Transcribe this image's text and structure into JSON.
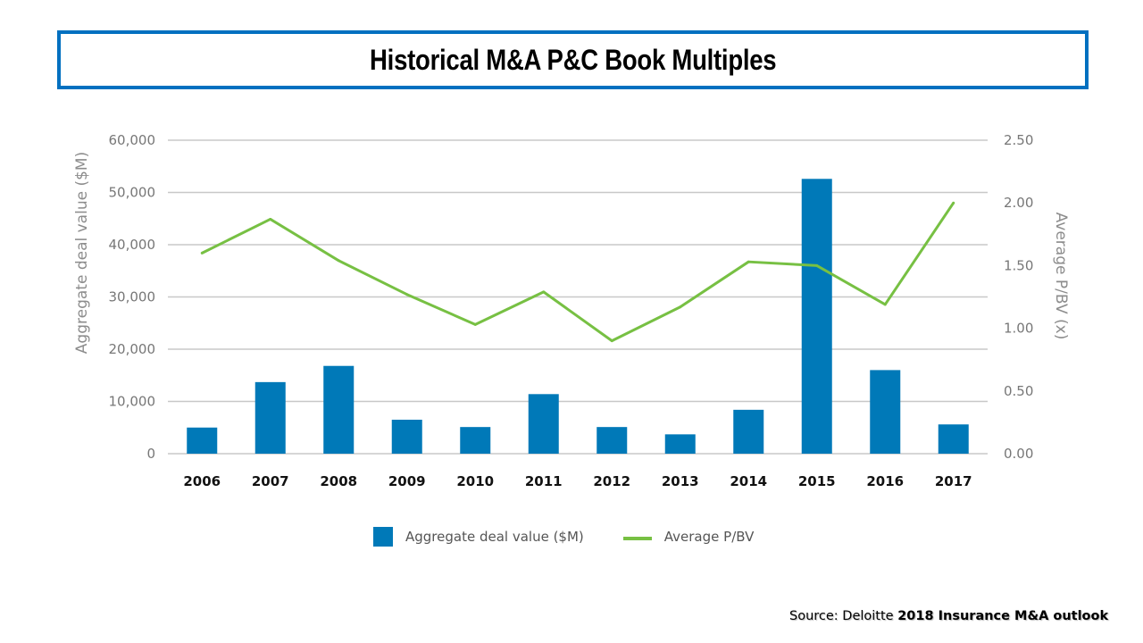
{
  "title": "Historical M&A P&C Book Multiples",
  "source": {
    "prefix": "Source: Deloitte",
    "emphasis": "2018 Insurance M&A outlook"
  },
  "colors": {
    "bar": "#0079b8",
    "line": "#77c043",
    "title_border": "#0070c0",
    "grid": "#c8c8c8"
  },
  "chart_data": {
    "type": "bar",
    "title": "Historical M&A P&C Book Multiples",
    "xlabel": "",
    "ylabel": "Aggregate deal value ($M)",
    "y2label": "Average P/BV (x)",
    "categories": [
      "2006",
      "2007",
      "2008",
      "2009",
      "2010",
      "2011",
      "2012",
      "2013",
      "2014",
      "2015",
      "2016",
      "2017"
    ],
    "series": [
      {
        "name": "Aggregate deal value ($M)",
        "type": "bar",
        "axis": "left",
        "values": [
          5000,
          13700,
          16800,
          6500,
          5100,
          11400,
          5100,
          3700,
          8400,
          52600,
          16000,
          5600
        ]
      },
      {
        "name": "Average P/BV",
        "type": "line",
        "axis": "right",
        "values": [
          1.6,
          1.87,
          1.54,
          1.27,
          1.03,
          1.29,
          0.9,
          1.17,
          1.53,
          1.5,
          1.19,
          2.0
        ]
      }
    ],
    "ylim": [
      0,
      60000
    ],
    "y2lim": [
      0,
      2.5
    ],
    "yticks": [
      "0",
      "10,000",
      "20,000",
      "30,000",
      "40,000",
      "50,000",
      "60,000"
    ],
    "y2ticks": [
      "0.00",
      "0.50",
      "1.00",
      "1.50",
      "2.00",
      "2.50"
    ],
    "grid": true,
    "legend_position": "bottom"
  }
}
